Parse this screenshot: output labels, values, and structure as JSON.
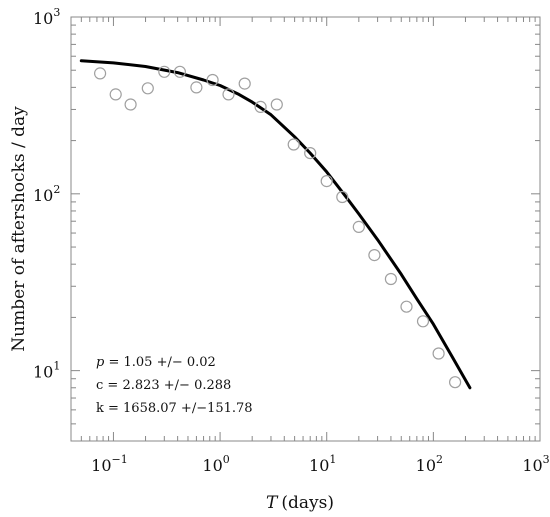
{
  "chart_data": {
    "type": "scatter",
    "xlabel_var": "T",
    "xlabel_unit": "(days)",
    "ylabel": "Number of aftershocks / day",
    "x_scale": "log",
    "y_scale": "log",
    "xlim": [
      0.04,
      1000
    ],
    "ylim": [
      4,
      1000
    ],
    "grid": false,
    "x_ticks": [
      {
        "base": "10",
        "exp": "−1",
        "value": 0.1
      },
      {
        "base": "10",
        "exp": "0",
        "value": 1
      },
      {
        "base": "10",
        "exp": "1",
        "value": 10
      },
      {
        "base": "10",
        "exp": "2",
        "value": 100
      },
      {
        "base": "10",
        "exp": "3",
        "value": 1000
      }
    ],
    "y_ticks": [
      {
        "base": "10",
        "exp": "1",
        "value": 10
      },
      {
        "base": "10",
        "exp": "2",
        "value": 100
      },
      {
        "base": "10",
        "exp": "3",
        "value": 1000
      }
    ],
    "series": [
      {
        "kind": "markers",
        "marker": "open-circle",
        "color": "#a0a0a0",
        "x": [
          0.075,
          0.105,
          0.145,
          0.21,
          0.3,
          0.42,
          0.6,
          0.85,
          1.2,
          1.7,
          2.4,
          3.4,
          4.9,
          7,
          10,
          14,
          20,
          28,
          40,
          56,
          80,
          112,
          160
        ],
        "y": [
          480,
          365,
          320,
          395,
          490,
          490,
          400,
          440,
          365,
          420,
          310,
          320,
          190,
          170,
          118,
          96,
          65,
          45,
          33,
          23,
          19,
          12.5,
          8.6
        ]
      },
      {
        "kind": "line",
        "color": "#000000",
        "x": [
          0.05,
          0.1,
          0.2,
          0.4,
          0.7,
          1,
          1.5,
          2,
          3,
          5,
          7,
          10,
          15,
          20,
          30,
          50,
          70,
          100,
          150,
          220
        ],
        "y": [
          565,
          550,
          525,
          485,
          440,
          410,
          365,
          330,
          280,
          210,
          170,
          133,
          97,
          77,
          55,
          35,
          25.5,
          18.3,
          12,
          8.0
        ]
      }
    ],
    "annotations": {
      "p_symbol": "p",
      "p_text": " = 1.05 +/− 0.02",
      "c_text": "c = 2.823 +/− 0.288",
      "k_text": "k = 1658.07 +/−151.78"
    }
  }
}
